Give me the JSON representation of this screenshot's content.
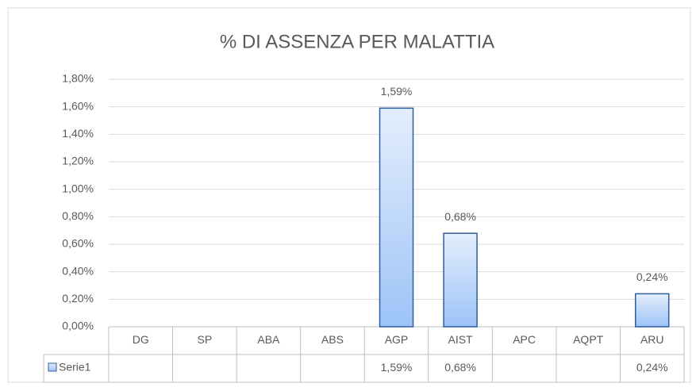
{
  "chart_data": {
    "type": "bar",
    "title": "% DI ASSENZA PER MALATTIA",
    "categories": [
      "DG",
      "SP",
      "ABA",
      "ABS",
      "AGP",
      "AIST",
      "APC",
      "AQPT",
      "ARU"
    ],
    "series": [
      {
        "name": "Serie1",
        "color": "#9dc3f7",
        "values": [
          null,
          null,
          null,
          null,
          1.59,
          0.68,
          null,
          null,
          0.24
        ],
        "value_labels": [
          null,
          null,
          null,
          null,
          "1,59%",
          "0,68%",
          null,
          null,
          "0,24%"
        ]
      }
    ],
    "ylim": [
      0,
      1.8
    ],
    "yticks": [
      {
        "value": 0,
        "label": "0,00%"
      },
      {
        "value": 0.2,
        "label": "0,20%"
      },
      {
        "value": 0.4,
        "label": "0,40%"
      },
      {
        "value": 0.6,
        "label": "0,60%"
      },
      {
        "value": 0.8,
        "label": "0,80%"
      },
      {
        "value": 1.0,
        "label": "1,00%"
      },
      {
        "value": 1.2,
        "label": "1,20%"
      },
      {
        "value": 1.4,
        "label": "1,40%"
      },
      {
        "value": 1.6,
        "label": "1,60%"
      },
      {
        "value": 1.8,
        "label": "1,80%"
      }
    ],
    "grid": true,
    "legend": "bottom"
  }
}
